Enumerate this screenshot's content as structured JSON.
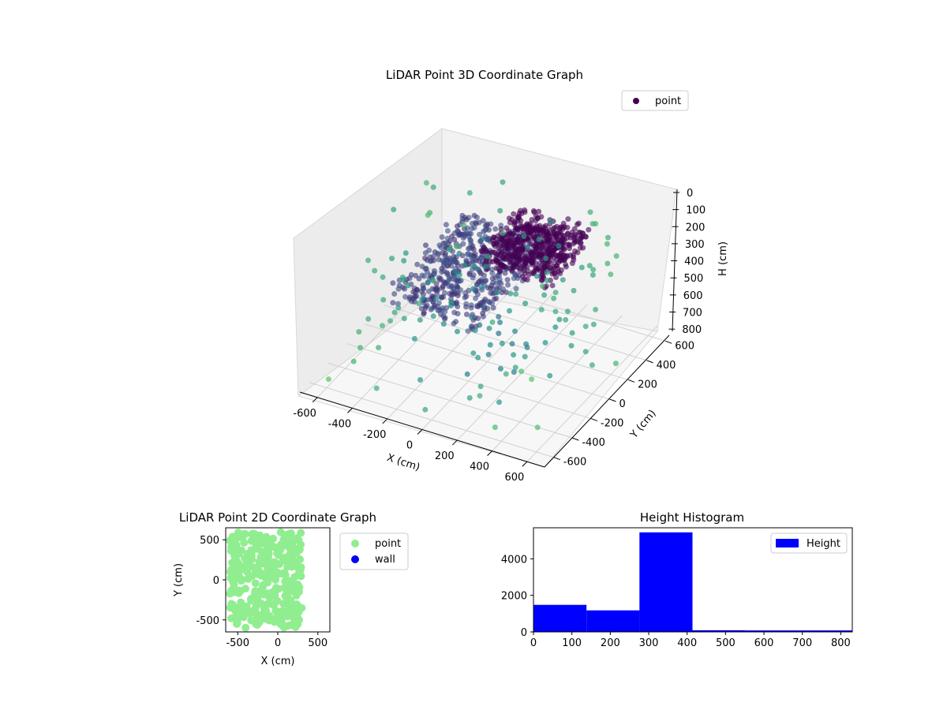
{
  "chart_data": [
    {
      "type": "scatter3d",
      "title": "LiDAR Point 3D Coordinate Graph",
      "xlabel": "X (cm)",
      "ylabel": "Y (cm)",
      "zlabel": "H (cm)",
      "xlim": [
        -700,
        700
      ],
      "ylim": [
        -700,
        700
      ],
      "zlim": [
        0,
        850
      ],
      "z_inverted": true,
      "x_ticks": [
        -600,
        -400,
        -200,
        0,
        200,
        400,
        600
      ],
      "y_ticks": [
        -600,
        -400,
        -200,
        0,
        200,
        400,
        600
      ],
      "z_ticks": [
        0,
        100,
        200,
        300,
        400,
        500,
        600,
        700,
        800
      ],
      "grid": true,
      "colormap": "viridis",
      "legend": {
        "placement": "top-right",
        "entries": [
          {
            "name": "point",
            "color": "#440154"
          }
        ]
      },
      "clusters": [
        {
          "x": [
            -350,
            150
          ],
          "y": [
            -400,
            400
          ],
          "z": [
            250,
            420
          ]
        },
        {
          "x": [
            -100,
            300
          ],
          "y": [
            100,
            550
          ],
          "z": [
            250,
            380
          ]
        },
        {
          "x": [
            -600,
            600
          ],
          "y": [
            -650,
            650
          ],
          "z": [
            100,
            850
          ]
        }
      ]
    },
    {
      "type": "scatter",
      "title": "LiDAR Point 2D Coordinate Graph",
      "xlabel": "X (cm)",
      "ylabel": "Y (cm)",
      "xlim": [
        -650,
        650
      ],
      "ylim": [
        -650,
        650
      ],
      "x_ticks": [
        -500,
        0,
        500
      ],
      "y_ticks": [
        -500,
        0,
        500
      ],
      "legend": {
        "placement": "outside-right",
        "entries": [
          {
            "name": "point",
            "color": "#90ee90"
          },
          {
            "name": "wall",
            "color": "#0000ff"
          }
        ]
      },
      "region": {
        "x": [
          -600,
          300
        ],
        "y": [
          -600,
          600
        ]
      }
    },
    {
      "type": "bar",
      "title": "Height Histogram",
      "legend": {
        "placement": "top-right",
        "entries": [
          {
            "name": "Height",
            "color": "#0000ff"
          }
        ]
      },
      "bins": [
        {
          "start": 0,
          "end": 138,
          "count": 1480
        },
        {
          "start": 138,
          "end": 276,
          "count": 1180
        },
        {
          "start": 276,
          "end": 414,
          "count": 5450
        },
        {
          "start": 414,
          "end": 552,
          "count": 90
        },
        {
          "start": 552,
          "end": 690,
          "count": 80
        },
        {
          "start": 690,
          "end": 830,
          "count": 80
        }
      ],
      "xlim": [
        0,
        830
      ],
      "ylim": [
        0,
        5700
      ],
      "x_ticks": [
        0,
        100,
        200,
        300,
        400,
        500,
        600,
        700,
        800
      ],
      "y_ticks": [
        0,
        2000,
        4000
      ],
      "color": "#0000ff"
    }
  ]
}
